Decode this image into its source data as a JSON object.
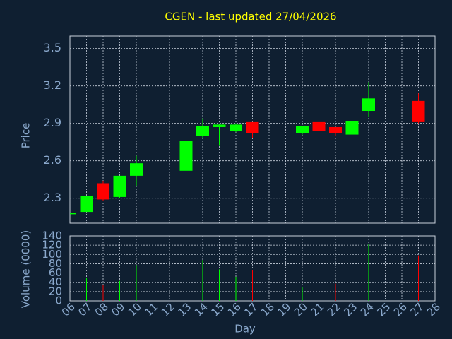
{
  "chart_data": {
    "type": "candlestick",
    "title": "CGEN - last updated 27/04/2026",
    "categories": [
      "06",
      "07",
      "08",
      "09",
      "10",
      "11",
      "12",
      "13",
      "14",
      "15",
      "16",
      "17",
      "18",
      "19",
      "20",
      "21",
      "22",
      "23",
      "24",
      "25",
      "26",
      "27",
      "28"
    ],
    "open": [
      2.18,
      2.19,
      2.42,
      2.31,
      2.48,
      null,
      null,
      2.52,
      2.8,
      2.87,
      2.84,
      2.91,
      null,
      null,
      2.82,
      2.91,
      2.87,
      2.81,
      3.0,
      null,
      null,
      3.08,
      null
    ],
    "high": [
      2.18,
      2.32,
      2.44,
      2.48,
      2.64,
      null,
      null,
      2.76,
      2.94,
      2.89,
      2.9,
      2.91,
      null,
      null,
      2.88,
      2.91,
      2.87,
      2.99,
      3.23,
      null,
      null,
      3.14,
      null
    ],
    "low": [
      2.18,
      2.19,
      2.28,
      2.3,
      2.4,
      null,
      null,
      2.51,
      2.78,
      2.72,
      2.83,
      2.78,
      null,
      null,
      2.81,
      2.77,
      2.8,
      2.81,
      2.95,
      null,
      null,
      2.9,
      null
    ],
    "close": [
      2.18,
      2.32,
      2.29,
      2.48,
      2.58,
      null,
      null,
      2.76,
      2.88,
      2.89,
      2.89,
      2.82,
      null,
      null,
      2.88,
      2.84,
      2.82,
      2.92,
      3.1,
      null,
      null,
      2.91,
      null
    ],
    "volume": [
      0,
      50,
      35,
      43,
      77,
      null,
      null,
      70,
      88,
      68,
      52,
      66,
      null,
      null,
      30,
      32,
      37,
      60,
      122,
      null,
      null,
      98,
      null
    ],
    "ylim": [
      2.1,
      3.6
    ],
    "yticks": [
      2.3,
      2.6,
      2.9,
      3.2,
      3.5
    ],
    "volume_ylim": [
      0,
      140
    ],
    "volume_yticks": [
      0,
      20,
      40,
      60,
      80,
      100,
      120,
      140
    ],
    "ylabel": "Price",
    "volume_ylabel": "Volume (0000)",
    "xlabel": "Day",
    "up_color": "#00ff00",
    "down_color": "#ff0000",
    "grid": true
  }
}
